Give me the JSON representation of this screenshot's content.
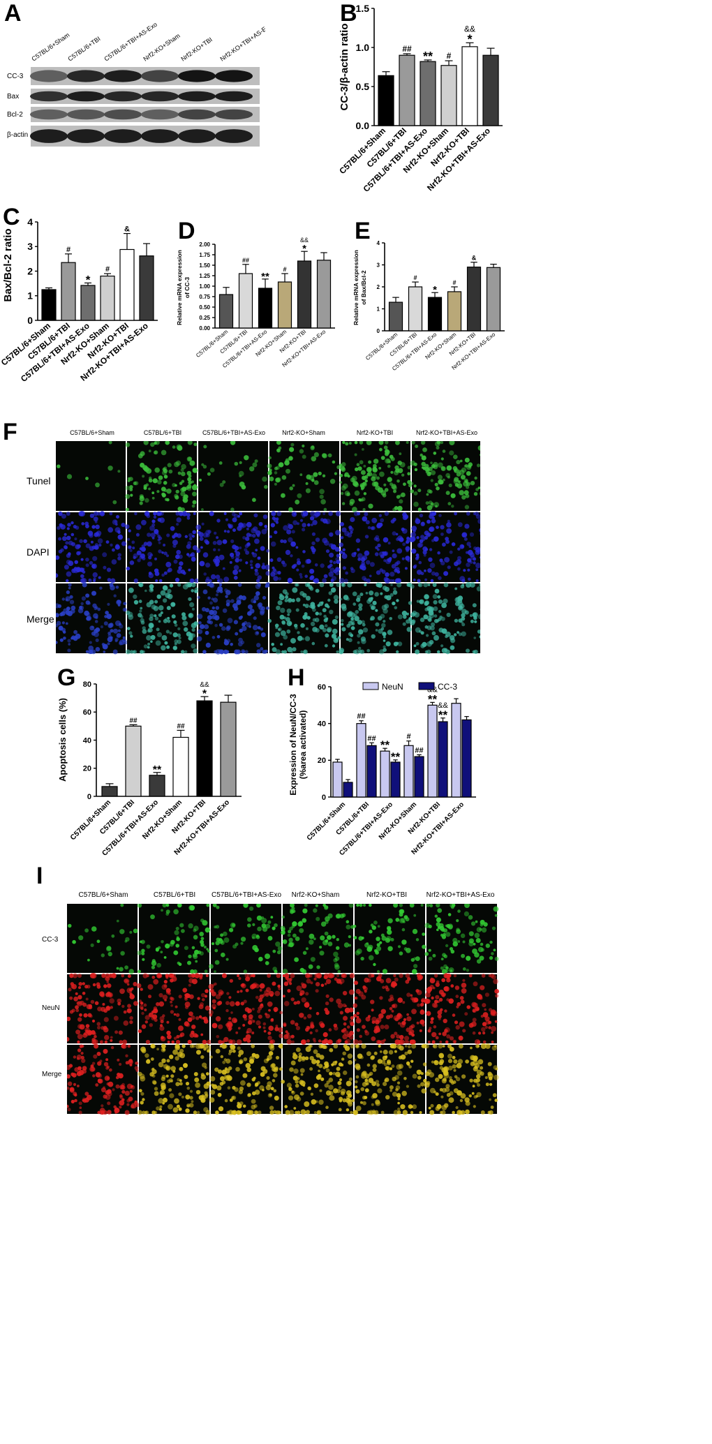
{
  "panel_letters": [
    "A",
    "B",
    "C",
    "D",
    "E",
    "F",
    "G",
    "H",
    "I"
  ],
  "groups": [
    "C57BL/6+Sham",
    "C57BL/6+TBI",
    "C57BL/6+TBI+AS-Exo",
    "Nrf2-KO+Sham",
    "Nrf2-KO+TBI",
    "Nrf2-KO+TBI+AS-Exo"
  ],
  "blot": {
    "rows": [
      "CC-3",
      "Bax",
      "Bcl-2",
      "β-actin"
    ]
  },
  "micro_f": {
    "rows": [
      "Tunel",
      "DAPI",
      "Merge"
    ]
  },
  "micro_i": {
    "rows": [
      "CC-3",
      "NeuN",
      "Merge"
    ]
  },
  "colors": {
    "tunel": "#3cbf3c",
    "dapi": "#2a2ad8",
    "cc3": "#33cc33",
    "neun": "#e02020",
    "merge_i": "#d9c020"
  },
  "chart_data": [
    {
      "id": "B",
      "type": "bar",
      "ylabel": "CC-3/β-actin ratio",
      "ylim": [
        0,
        1.5
      ],
      "yticks": [
        "0.0",
        "0.5",
        "1.0",
        "1.5"
      ],
      "values": [
        0.64,
        0.9,
        0.82,
        0.77,
        1.01,
        0.9
      ],
      "errors": [
        0.05,
        0.02,
        0.02,
        0.06,
        0.05,
        0.09
      ],
      "colors": [
        "#000000",
        "#9a9a9a",
        "#6e6e6e",
        "#cfcfcf",
        "#ffffff",
        "#3a3a3a"
      ],
      "annotations": [
        [
          "",
          ""
        ],
        [
          "",
          "##"
        ],
        [
          "",
          "**"
        ],
        [
          "",
          "#"
        ],
        [
          "&&",
          "*"
        ],
        [
          "",
          ""
        ]
      ]
    },
    {
      "id": "C",
      "type": "bar",
      "ylabel": "Bax/Bcl-2 ratio",
      "ylim": [
        0,
        4
      ],
      "yticks": [
        "0",
        "1",
        "2",
        "3",
        "4"
      ],
      "values": [
        1.25,
        2.35,
        1.42,
        1.8,
        2.88,
        2.62
      ],
      "errors": [
        0.07,
        0.35,
        0.1,
        0.1,
        0.65,
        0.5
      ],
      "colors": [
        "#000000",
        "#9a9a9a",
        "#6e6e6e",
        "#cfcfcf",
        "#ffffff",
        "#3a3a3a"
      ],
      "annotations": [
        [
          "",
          ""
        ],
        [
          "",
          "#"
        ],
        [
          "",
          "*"
        ],
        [
          "",
          "#"
        ],
        [
          "",
          "&"
        ],
        [
          "",
          ""
        ]
      ]
    },
    {
      "id": "D",
      "type": "bar",
      "ylabel": "Relative mRNA expression",
      "ylabel2": "of CC-3",
      "ylim": [
        0,
        2.0
      ],
      "yticks": [
        "0.00",
        "0.25",
        "0.50",
        "0.75",
        "1.00",
        "1.25",
        "1.50",
        "1.75",
        "2.00"
      ],
      "values": [
        0.8,
        1.3,
        0.95,
        1.1,
        1.6,
        1.62
      ],
      "errors": [
        0.17,
        0.22,
        0.22,
        0.2,
        0.23,
        0.18
      ],
      "colors": [
        "#555555",
        "#d9d9d9",
        "#000000",
        "#b9a878",
        "#333333",
        "#9a9a9a"
      ],
      "annotations": [
        [
          "",
          ""
        ],
        [
          "",
          "##"
        ],
        [
          "",
          "**"
        ],
        [
          "",
          "#"
        ],
        [
          "&&",
          "*"
        ],
        [
          "",
          ""
        ]
      ]
    },
    {
      "id": "E",
      "type": "bar",
      "ylabel": "Relative mRNA expression",
      "ylabel2": "of Bax/Bcl-2",
      "ylim": [
        0,
        4
      ],
      "yticks": [
        "0",
        "1",
        "2",
        "3",
        "4"
      ],
      "values": [
        1.3,
        2.0,
        1.52,
        1.78,
        2.9,
        2.88
      ],
      "errors": [
        0.22,
        0.22,
        0.22,
        0.22,
        0.22,
        0.15
      ],
      "colors": [
        "#555555",
        "#d9d9d9",
        "#000000",
        "#b9a878",
        "#333333",
        "#9a9a9a"
      ],
      "annotations": [
        [
          "",
          ""
        ],
        [
          "",
          "#"
        ],
        [
          "",
          "*"
        ],
        [
          "",
          "#"
        ],
        [
          "",
          "&"
        ],
        [
          "",
          ""
        ]
      ]
    },
    {
      "id": "G",
      "type": "bar",
      "ylabel": "Apoptosis cells (%)",
      "ylim": [
        0,
        80
      ],
      "yticks": [
        "0",
        "20",
        "40",
        "60",
        "80"
      ],
      "values": [
        7,
        50,
        15,
        42,
        68,
        67
      ],
      "errors": [
        2,
        1,
        2,
        5,
        3,
        5
      ],
      "colors": [
        "#3a3a3a",
        "#d0d0d0",
        "#3a3a3a",
        "#ffffff",
        "#000000",
        "#9a9a9a"
      ],
      "annotations": [
        [
          "",
          ""
        ],
        [
          "",
          "##"
        ],
        [
          "",
          "**"
        ],
        [
          "",
          "##"
        ],
        [
          "&&",
          "*"
        ],
        [
          "",
          ""
        ]
      ]
    },
    {
      "id": "H",
      "type": "bar",
      "ylabel": "Expression of NeuN/CC-3",
      "ylabel2": "(%area activated)",
      "ylim": [
        0,
        60
      ],
      "yticks": [
        "0",
        "20",
        "40",
        "60"
      ],
      "legend": [
        "NeuN",
        "CC-3"
      ],
      "legend_position": "top",
      "series": [
        {
          "name": "NeuN",
          "values": [
            19,
            40,
            25,
            28,
            50,
            51
          ],
          "errors": [
            1.5,
            1.5,
            1.5,
            2.5,
            1.5,
            2.5
          ],
          "color": "#c8c8f0",
          "annotations": [
            [
              "",
              ""
            ],
            [
              "",
              "##"
            ],
            [
              "",
              "**"
            ],
            [
              "",
              "#"
            ],
            [
              "&&",
              "**"
            ],
            [
              "",
              ""
            ]
          ]
        },
        {
          "name": "CC-3",
          "values": [
            8,
            28,
            19,
            22,
            41,
            42
          ],
          "errors": [
            1.5,
            1.5,
            1.2,
            1.0,
            2.0,
            1.8
          ],
          "color": "#10107a",
          "annotations": [
            [
              "",
              ""
            ],
            [
              "",
              "##"
            ],
            [
              "",
              "**"
            ],
            [
              "",
              "##"
            ],
            [
              "&&",
              "**"
            ],
            [
              "",
              ""
            ]
          ]
        }
      ]
    }
  ]
}
